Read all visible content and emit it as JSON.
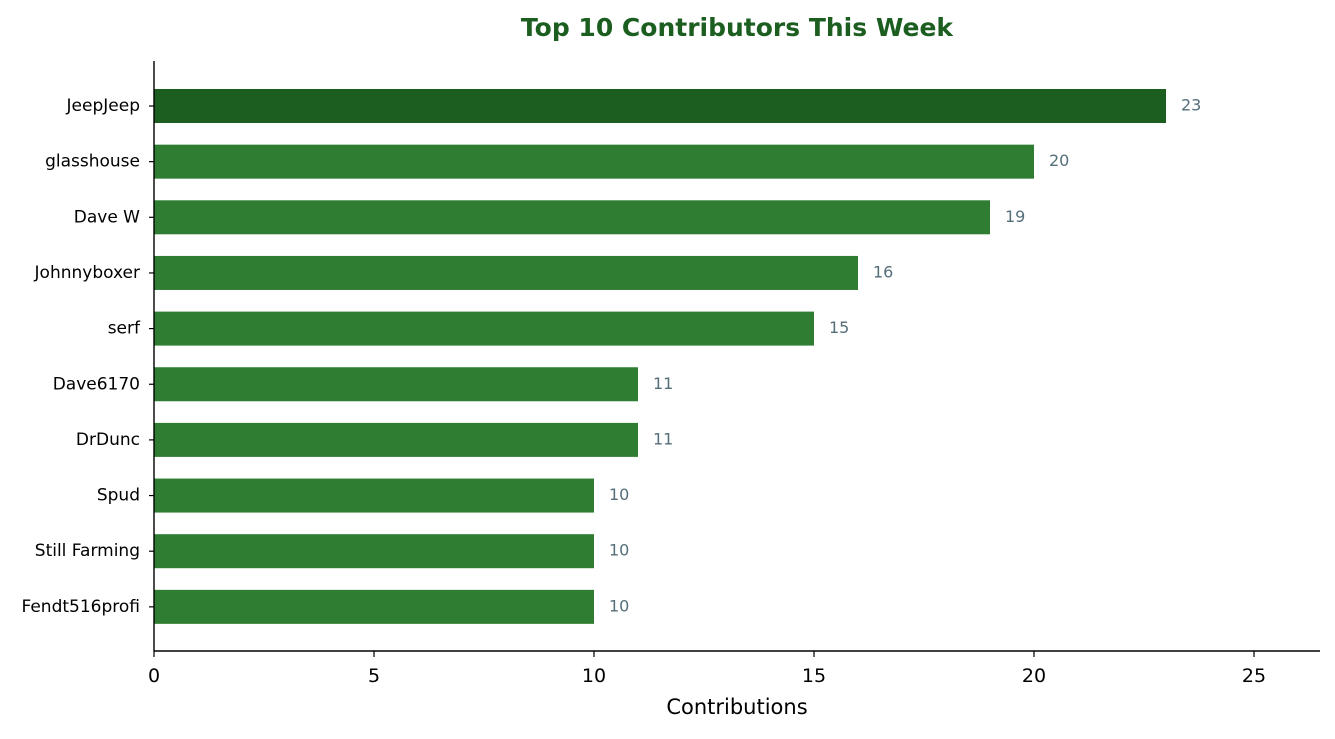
{
  "chart_data": {
    "type": "bar",
    "orientation": "horizontal",
    "title": "Top 10 Contributors This Week",
    "xlabel": "Contributions",
    "ylabel": "",
    "xlim": [
      0,
      26.5
    ],
    "xticks": [
      0,
      5,
      10,
      15,
      20,
      25
    ],
    "grid": false,
    "categories": [
      "JeepJeep",
      "glasshouse",
      "Dave W",
      "Johnnyboxer",
      "serf",
      "Dave6170",
      "DrDunc",
      "Spud",
      "Still Farming",
      "Fendt516profi"
    ],
    "values": [
      23,
      20,
      19,
      16,
      15,
      11,
      11,
      10,
      10,
      10
    ],
    "data_labels": [
      "23",
      "20",
      "19",
      "16",
      "15",
      "11",
      "11",
      "10",
      "10",
      "10"
    ],
    "colors": {
      "highlight_bar": "#1b5e20",
      "bar": "#2e7d32",
      "title": "#1b5e20",
      "value_label": "#546e7a",
      "axis": "#000000",
      "text": "#000000"
    }
  }
}
